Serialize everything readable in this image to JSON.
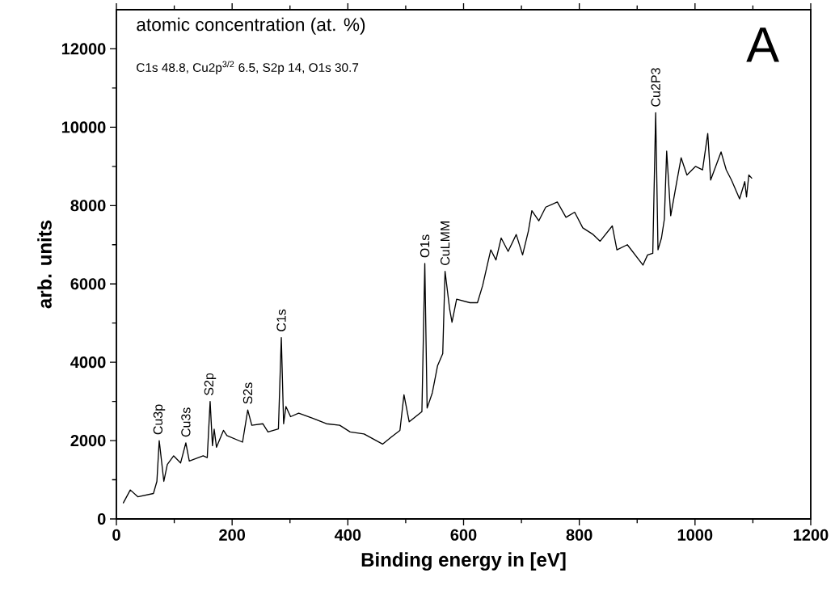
{
  "chart_data": {
    "type": "line",
    "xlabel": "Binding energy in [eV]",
    "ylabel": "arb. units",
    "xlim": [
      0,
      1200
    ],
    "xticks": [
      0,
      200,
      400,
      600,
      800,
      1000,
      1200
    ],
    "ylim": [
      0,
      13000
    ],
    "yticks": [
      0,
      2000,
      4000,
      6000,
      8000,
      10000,
      12000
    ],
    "x": [
      12,
      24,
      37,
      64,
      70,
      74,
      82,
      88,
      99,
      111,
      120,
      126,
      150,
      157,
      162,
      166,
      169,
      173,
      185,
      191,
      218,
      227,
      234,
      253,
      262,
      280,
      285,
      289,
      293,
      301,
      315,
      339,
      363,
      386,
      404,
      428,
      460,
      475,
      490,
      497,
      506,
      517,
      528,
      533,
      537,
      546,
      555,
      564,
      568,
      576,
      580,
      588,
      611,
      624,
      633,
      641,
      647,
      656,
      665,
      677,
      691,
      702,
      712,
      718,
      730,
      742,
      762,
      777,
      792,
      806,
      824,
      836,
      857,
      865,
      883,
      910,
      918,
      927,
      932,
      936,
      942,
      947,
      951,
      958,
      968,
      976,
      986,
      1001,
      1013,
      1022,
      1027,
      1045,
      1054,
      1063,
      1077,
      1086,
      1089,
      1093,
      1098
    ],
    "series": [
      {
        "color": "#000000",
        "values": [
          410,
          740,
          565,
          650,
          960,
          2000,
          960,
          1390,
          1610,
          1430,
          1940,
          1480,
          1610,
          1565,
          3000,
          1870,
          2290,
          1830,
          2260,
          2130,
          1960,
          2780,
          2390,
          2430,
          2220,
          2300,
          4630,
          2430,
          2870,
          2610,
          2700,
          2570,
          2430,
          2390,
          2220,
          2170,
          1910,
          2090,
          2260,
          3170,
          2480,
          2610,
          2740,
          6520,
          2830,
          3220,
          3910,
          4220,
          6320,
          5350,
          5020,
          5610,
          5520,
          5520,
          5960,
          6480,
          6870,
          6610,
          7170,
          6830,
          7260,
          6740,
          7350,
          7870,
          7610,
          7960,
          8090,
          7700,
          7830,
          7430,
          7260,
          7090,
          7480,
          6870,
          7000,
          6480,
          6740,
          6780,
          10370,
          6870,
          7170,
          7650,
          9390,
          7740,
          8570,
          9220,
          8780,
          9000,
          8910,
          9840,
          8650,
          9370,
          8910,
          8650,
          8170,
          8610,
          8220,
          8780,
          8700
        ]
      }
    ],
    "annotations": [
      "atomic concentration (at. %)",
      "C1s 48.8, Cu2p$^{3/2}$ 6.5, S2p 14, O1s 30.7",
      "A",
      {
        "text": "Cu3p",
        "x": 74,
        "y": 2000
      },
      {
        "text": "Cu3s",
        "x": 120,
        "y": 1940
      },
      {
        "text": "S2p",
        "x": 162,
        "y": 3000
      },
      {
        "text": "S2s",
        "x": 227,
        "y": 2780
      },
      {
        "text": "C1s",
        "x": 285,
        "y": 4630
      },
      {
        "text": "O1s",
        "x": 533,
        "y": 6520
      },
      {
        "text": "CuLMM",
        "x": 568,
        "y": 6320
      },
      {
        "text": "Cu2P3",
        "x": 932,
        "y": 10370
      }
    ]
  }
}
